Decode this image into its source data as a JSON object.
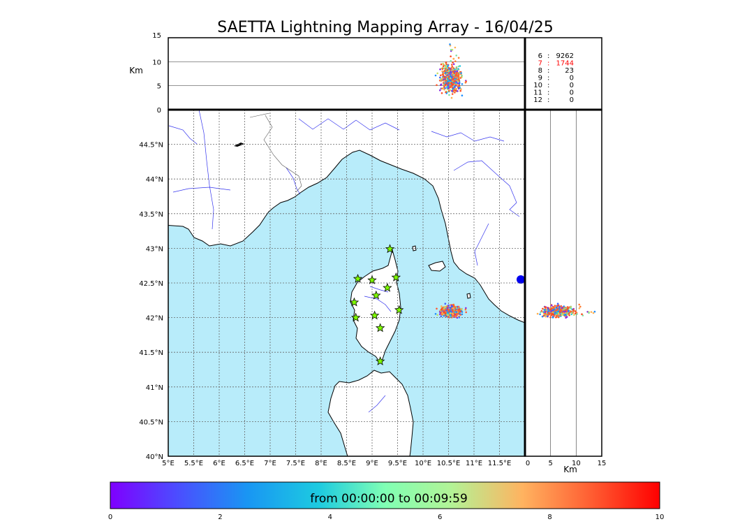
{
  "title": "SAETTA Lightning Mapping Array - 16/04/25",
  "colors": {
    "sea": "#b8ecfa",
    "land": "#ffffff",
    "coast": "#000000",
    "rivers": "#3333ee",
    "borders": "#555555",
    "station_star": "#7fff00",
    "highlight_row": "#ff0000"
  },
  "chart_data": {
    "type": "scatter",
    "map_panel": {
      "lon_range": [
        5,
        12
      ],
      "lat_range": [
        40,
        45
      ],
      "lon_ticks": [
        "5°E",
        "5.5°E",
        "6°E",
        "6.5°E",
        "7°E",
        "7.5°E",
        "8°E",
        "8.5°E",
        "9°E",
        "9.5°E",
        "10°E",
        "10.5°E",
        "11°E",
        "11.5°E"
      ],
      "lat_ticks": [
        "40°N",
        "40.5°N",
        "41°N",
        "41.5°N",
        "42°N",
        "42.5°N",
        "43°N",
        "43.5°N",
        "44°N",
        "44.5°N"
      ],
      "grid": true
    },
    "altitude_lon_panel": {
      "unit_label": "Km",
      "alt_range": [
        0,
        15
      ],
      "alt_ticks": [
        "0",
        "5",
        "10",
        "15"
      ]
    },
    "lat_altitude_panel": {
      "unit_label": "Km",
      "alt_range": [
        0,
        15
      ],
      "alt_ticks": [
        "0",
        "5",
        "10",
        "15"
      ]
    },
    "station_counts": [
      {
        "stations": "6",
        "count": "9262",
        "highlight": false
      },
      {
        "stations": "7",
        "count": "1744",
        "highlight": true
      },
      {
        "stations": "8",
        "count": "23",
        "highlight": false
      },
      {
        "stations": "9",
        "count": "0",
        "highlight": false
      },
      {
        "stations": "10",
        "count": "0",
        "highlight": false
      },
      {
        "stations": "11",
        "count": "0",
        "highlight": false
      },
      {
        "stations": "12",
        "count": "0",
        "highlight": false
      }
    ],
    "stations": [
      {
        "lon": 9.35,
        "lat": 42.99
      },
      {
        "lon": 8.72,
        "lat": 42.56
      },
      {
        "lon": 9.0,
        "lat": 42.54
      },
      {
        "lon": 9.47,
        "lat": 42.58
      },
      {
        "lon": 9.3,
        "lat": 42.43
      },
      {
        "lon": 9.08,
        "lat": 42.32
      },
      {
        "lon": 8.65,
        "lat": 42.22
      },
      {
        "lon": 9.53,
        "lat": 42.11
      },
      {
        "lon": 8.68,
        "lat": 42.0
      },
      {
        "lon": 9.05,
        "lat": 42.03
      },
      {
        "lon": 9.16,
        "lat": 41.85
      },
      {
        "lon": 9.16,
        "lat": 41.37
      }
    ],
    "flash_cluster": {
      "lon_center": 10.55,
      "lat_center": 42.09,
      "lon_spread": 0.15,
      "lat_spread": 0.06,
      "alt_center_km": 6.5,
      "alt_spread_km": 2.2,
      "alt_max_km": 14
    },
    "colorbar": {
      "label": "from 00:00:00 to 00:09:59",
      "range": [
        0,
        10
      ],
      "ticks": [
        "0",
        "2",
        "4",
        "6",
        "8",
        "10"
      ]
    }
  }
}
